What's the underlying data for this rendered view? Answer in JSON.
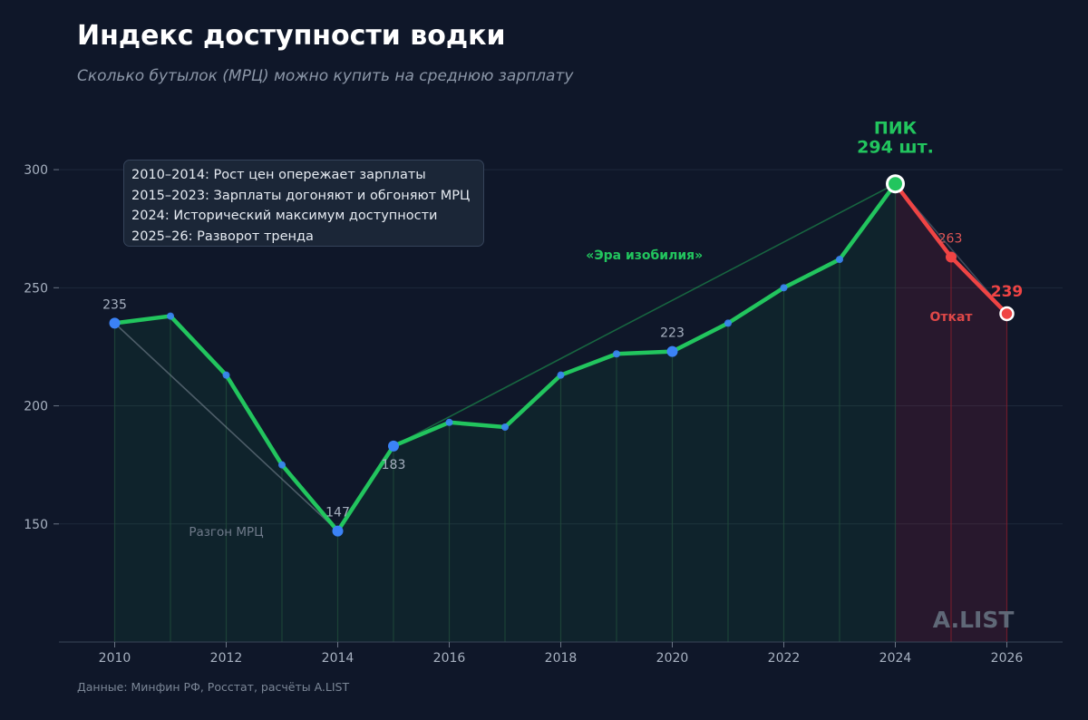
{
  "header": {
    "title": "Индекс доступности водки",
    "subtitle": "Сколько бутылок (МРЦ) можно купить на среднюю зарплату"
  },
  "footer": {
    "source": "Данные: Минфин РФ, Росстат, расчёты A.LIST"
  },
  "watermark": "A.LIST",
  "legend_box": {
    "lines": [
      "2010–2014: Рост цен опережает зарплаты",
      "2015–2023: Зарплаты догоняют и обгоняют МРЦ",
      "2024: Исторический максимум доступности",
      "2025–26: Разворот тренда"
    ]
  },
  "colors": {
    "background": "#0f1729",
    "growth_line": "#22c55e",
    "decline_line": "#ef4444",
    "point": "#3b82f6",
    "peak_point": "#22c55e",
    "grid": "#1e293b",
    "text_muted": "#8c97a8"
  },
  "chart_data": {
    "type": "line",
    "x": [
      2010,
      2011,
      2012,
      2013,
      2014,
      2015,
      2016,
      2017,
      2018,
      2019,
      2020,
      2021,
      2022,
      2023,
      2024,
      2025,
      2026
    ],
    "series": [
      {
        "name": "",
        "values": [
          235,
          238,
          213,
          175,
          147,
          183,
          193,
          191,
          213,
          222,
          223,
          235,
          250,
          262,
          294,
          263,
          239
        ]
      }
    ],
    "xlim": [
      2009,
      2027
    ],
    "ylim": [
      100,
      320
    ],
    "xticks": [
      "2010",
      "2012",
      "2014",
      "2016",
      "2018",
      "2020",
      "2022",
      "2024",
      "2026"
    ],
    "yticks": [
      "150",
      "200",
      "250",
      "300"
    ],
    "grid": true,
    "point_labels": [
      {
        "x": 2010,
        "text": "235"
      },
      {
        "x": 2014,
        "text": "147"
      },
      {
        "x": 2015,
        "text": "183"
      },
      {
        "x": 2020,
        "text": "223"
      },
      {
        "x": 2025,
        "text": "263"
      },
      {
        "x": 2026,
        "text": "239"
      }
    ],
    "peak": {
      "x": 2024,
      "label_line1": "ПИК",
      "label_line2": "294 шт."
    },
    "annotations": [
      {
        "text": "Разгон МРЦ"
      },
      {
        "text": "«Эра изобилия»"
      },
      {
        "text": "Откат"
      }
    ]
  }
}
